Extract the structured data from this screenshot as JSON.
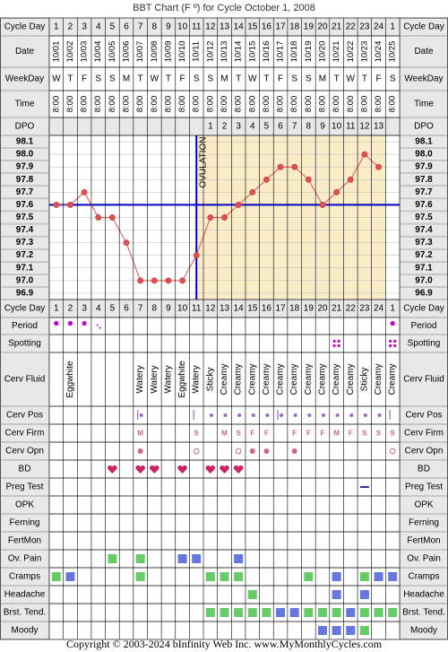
{
  "title": "BBT Chart (F º) for Cycle October 1, 2008",
  "footer": "Copyright © 2003-2024 bInfinity Web Inc.    www.MyMonthlyCycles.com",
  "row_labels": {
    "cycle_day": "Cycle Day",
    "date": "Date",
    "weekday": "WeekDay",
    "time": "Time",
    "dpo": "DPO",
    "period": "Period",
    "spotting": "Spotting",
    "cerv_fluid": "Cerv Fluid",
    "cerv_pos": "Cerv Pos",
    "cerv_firm": "Cerv Firm",
    "cerv_opn": "Cerv Opn",
    "bd": "BD",
    "preg_test": "Preg Test",
    "opk": "OPK",
    "ferning": "Ferning",
    "fertmon": "FertMon",
    "ov_pain": "Ov. Pain",
    "cramps": "Cramps",
    "headache": "Headache",
    "brst_tend": "Brst. Tend.",
    "moody": "Moody"
  },
  "ovulation_label": "OVULATION",
  "colors": {
    "grid": "#000000",
    "pre_ovulation_bg": "#ffffff",
    "post_ovulation_bg": "#fbecc8",
    "line": "#e05050",
    "coverline": "#0000cc",
    "period": "#cc00cc",
    "green": "#66cc66",
    "blue": "#6677dd",
    "heart": "#cc2266",
    "mucus": "#cc6688",
    "header_bg": "#e8e8e8"
  },
  "days": {
    "cycle_day": [
      "1",
      "2",
      "3",
      "4",
      "5",
      "6",
      "7",
      "8",
      "9",
      "10",
      "11",
      "12",
      "13",
      "14",
      "15",
      "16",
      "17",
      "18",
      "19",
      "20",
      "21",
      "22",
      "23",
      "24",
      "1"
    ],
    "date": [
      "10/01",
      "10/02",
      "10/03",
      "10/04",
      "10/05",
      "10/06",
      "10/07",
      "10/08",
      "10/09",
      "10/10",
      "10/11",
      "10/12",
      "10/13",
      "10/14",
      "10/15",
      "10/16",
      "10/17",
      "10/18",
      "10/19",
      "10/20",
      "10/21",
      "10/22",
      "10/23",
      "10/24",
      "10/25"
    ],
    "weekday": [
      "W",
      "T",
      "F",
      "S",
      "S",
      "M",
      "T",
      "W",
      "T",
      "F",
      "S",
      "S",
      "M",
      "T",
      "W",
      "T",
      "F",
      "S",
      "S",
      "M",
      "T",
      "W",
      "T",
      "F",
      "S"
    ],
    "time": [
      "8:00",
      "8:00",
      "8:00",
      "8:00",
      "8:00",
      "8:00",
      "8:00",
      "8:00",
      "8:00",
      "8:00",
      "8:00",
      "8:00",
      "8:00",
      "8:00",
      "8:00",
      "8:00",
      "8:00",
      "8:00",
      "8:00",
      "8:00",
      "8:00",
      "8:00",
      "8:00",
      "8:00",
      "8:00"
    ],
    "dpo": [
      "",
      "",
      "",
      "",
      "",
      "",
      "",
      "",
      "",
      "",
      "",
      "1",
      "2",
      "3",
      "4",
      "5",
      "6",
      "7",
      "8",
      "9",
      "10",
      "11",
      "12",
      "13",
      ""
    ]
  },
  "chart_data": {
    "type": "line",
    "title": "BBT Chart (F º) for Cycle October 1, 2008",
    "x": [
      "1",
      "2",
      "3",
      "4",
      "5",
      "6",
      "7",
      "8",
      "9",
      "10",
      "11",
      "12",
      "13",
      "14",
      "15",
      "16",
      "17",
      "18",
      "19",
      "20",
      "21",
      "22",
      "23",
      "24"
    ],
    "series": [
      {
        "values": [
          97.6,
          97.6,
          97.7,
          97.5,
          97.5,
          97.3,
          97.0,
          97.0,
          97.0,
          97.0,
          97.2,
          97.5,
          97.5,
          97.6,
          97.7,
          97.8,
          97.9,
          97.9,
          97.8,
          97.6,
          97.7,
          97.8,
          98.0,
          97.9
        ]
      }
    ],
    "y_ticks": [
      "98.1",
      "98.0",
      "97.9",
      "97.8",
      "97.7",
      "97.6",
      "97.5",
      "97.4",
      "97.3",
      "97.2",
      "97.1",
      "97.0",
      "96.9"
    ],
    "ylim": [
      96.9,
      98.1
    ],
    "coverline": 97.6,
    "ovulation_day": 11,
    "grid": true
  },
  "observations": {
    "period": [
      "dot",
      "dot",
      "dot",
      "light",
      "",
      "",
      "",
      "",
      "",
      "",
      "",
      "",
      "",
      "",
      "",
      "",
      "",
      "",
      "",
      "",
      "",
      "",
      "",
      "",
      "dot"
    ],
    "spotting": [
      "",
      "",
      "",
      "",
      "",
      "",
      "",
      "",
      "",
      "",
      "",
      "",
      "",
      "",
      "",
      "",
      "",
      "",
      "",
      "",
      "spot",
      "",
      "",
      "",
      "spot"
    ],
    "cerv_fluid": [
      "",
      "Eggwhite",
      "",
      "",
      "",
      "",
      "Watery",
      "Watery",
      "Watery",
      "Eggwhite",
      "Watery",
      "Sticky",
      "Creamy",
      "Creamy",
      "Creamy",
      "Creamy",
      "Creamy",
      "Creamy",
      "Creamy",
      "Creamy",
      "Creamy",
      "Creamy",
      "Sticky",
      "Creamy",
      "Creamy"
    ],
    "cerv_pos": [
      "",
      "",
      "",
      "",
      "",
      "",
      "bar-dot",
      "",
      "",
      "",
      "bar",
      "dot",
      "dot",
      "dot",
      "dot",
      "dot",
      "bar-dot",
      "dot",
      "dot",
      "dot",
      "dot",
      "dot",
      "dot",
      "dot",
      "bar"
    ],
    "cerv_firm": [
      "",
      "",
      "",
      "",
      "",
      "",
      "M",
      "",
      "",
      "",
      "S",
      "",
      "M",
      "S",
      "F",
      "F",
      "",
      "F",
      "F",
      "F",
      "M",
      "F",
      "S",
      "S",
      "S"
    ],
    "cerv_opn": [
      "",
      "",
      "",
      "",
      "",
      "",
      "dot",
      "",
      "",
      "",
      "ring",
      "",
      "",
      "ring",
      "dot",
      "dot",
      "",
      "dot",
      "",
      "",
      "",
      "",
      "",
      "",
      "ring"
    ],
    "bd": [
      "",
      "",
      "",
      "",
      "heart",
      "",
      "heart",
      "heart",
      "",
      "heart",
      "",
      "heart",
      "heart",
      "heart",
      "",
      "",
      "",
      "",
      "",
      "",
      "",
      "",
      "",
      "",
      ""
    ],
    "preg_test": [
      "",
      "",
      "",
      "",
      "",
      "",
      "",
      "",
      "",
      "",
      "",
      "",
      "",
      "",
      "",
      "",
      "",
      "",
      "",
      "",
      "",
      "",
      "dash",
      "",
      ""
    ],
    "opk": [],
    "ferning": [],
    "fertmon": [],
    "ov_pain": [
      "",
      "",
      "",
      "",
      "green",
      "",
      "green",
      "",
      "",
      "blue",
      "blue",
      "",
      "",
      "blue",
      "",
      "",
      "",
      "",
      "",
      "",
      "",
      "",
      "",
      "",
      ""
    ],
    "cramps": [
      "green",
      "blue",
      "",
      "",
      "",
      "",
      "green",
      "",
      "",
      "",
      "",
      "green",
      "green",
      "green",
      "",
      "",
      "",
      "",
      "green",
      "",
      "blue",
      "",
      "green",
      "blue",
      "blue"
    ],
    "headache": [
      "",
      "",
      "",
      "",
      "",
      "",
      "",
      "",
      "",
      "",
      "",
      "",
      "",
      "",
      "green",
      "",
      "",
      "",
      "",
      "",
      "blue",
      "",
      "blue",
      "",
      ""
    ],
    "brst_tend": [
      "",
      "",
      "",
      "",
      "",
      "",
      "",
      "",
      "",
      "",
      "",
      "green",
      "green",
      "green",
      "green",
      "green",
      "blue",
      "blue",
      "green",
      "green",
      "green",
      "blue",
      "green",
      "green",
      "green"
    ],
    "moody": [
      "",
      "",
      "",
      "",
      "",
      "",
      "",
      "",
      "",
      "",
      "",
      "",
      "",
      "",
      "",
      "",
      "",
      "",
      "",
      "blue",
      "blue",
      "blue",
      "green",
      "",
      ""
    ]
  }
}
